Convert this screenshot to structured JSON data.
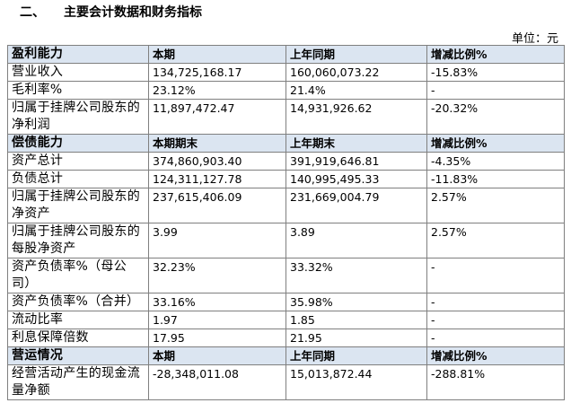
{
  "heading": "二、　　主要会计数据和财务指标",
  "unit": "单位：元",
  "sections": [
    {
      "header": [
        "盈利能力",
        "本期",
        "上年同期",
        "增减比例%"
      ],
      "rows": [
        [
          "营业收入",
          "134,725,168.17",
          "160,060,073.22",
          "-15.83%"
        ],
        [
          "毛利率%",
          "23.12%",
          "21.4%",
          "-"
        ],
        [
          "归属于挂牌公司股东的净利润",
          "11,897,472.47",
          "14,931,926.62",
          "-20.32%"
        ]
      ]
    },
    {
      "header": [
        "偿债能力",
        "本期期末",
        "上年期末",
        "增减比例%"
      ],
      "rows": [
        [
          "资产总计",
          "374,860,903.40",
          "391,919,646.81",
          "-4.35%"
        ],
        [
          "负债总计",
          "124,311,127.78",
          "140,995,495.33",
          "-11.83%"
        ],
        [
          "归属于挂牌公司股东的净资产",
          "237,615,406.09",
          "231,669,004.79",
          "2.57%"
        ],
        [
          "归属于挂牌公司股东的每股净资产",
          "3.99",
          "3.89",
          "2.57%"
        ],
        [
          "资产负债率%（母公司）",
          "32.23%",
          "33.32%",
          "-"
        ],
        [
          "资产负债率%（合并）",
          "33.16%",
          "35.98%",
          "-"
        ],
        [
          "流动比率",
          "1.97",
          "1.85",
          "-"
        ],
        [
          "利息保障倍数",
          "17.95",
          "21.95",
          "-"
        ]
      ]
    },
    {
      "header": [
        "营运情况",
        "本期",
        "上年同期",
        "增减比例%"
      ],
      "rows": [
        [
          "经营活动产生的现金流量净额",
          "-28,348,011.08",
          "15,013,872.44",
          "-288.81%"
        ]
      ]
    }
  ]
}
